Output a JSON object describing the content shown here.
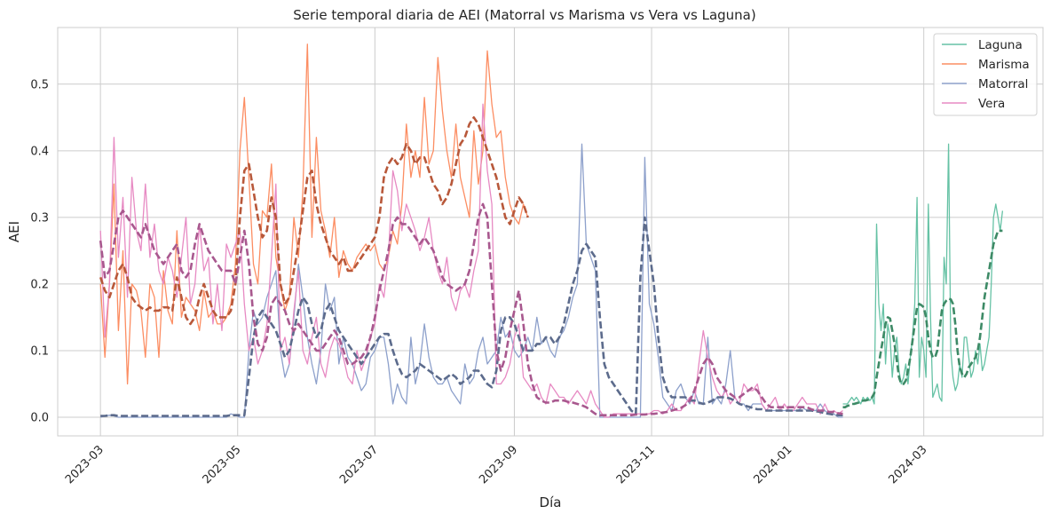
{
  "chart_data": {
    "type": "line",
    "title": "Serie temporal diaria de AEI (Matorral vs Marisma vs Vera vs Laguna)",
    "xlabel": "Día",
    "ylabel": "AEI",
    "x_range": [
      "2023-02-10",
      "2024-04-23"
    ],
    "ylim": [
      -0.028,
      0.585
    ],
    "grid": true,
    "legend_position": "top-right",
    "x_ticks": [
      "2023-03",
      "2023-05",
      "2023-07",
      "2023-09",
      "2023-11",
      "2024-01",
      "2024-03"
    ],
    "x_tick_dates": [
      "2023-03-01",
      "2023-05-01",
      "2023-07-01",
      "2023-09-01",
      "2023-11-01",
      "2024-01-01",
      "2024-03-01"
    ],
    "y_ticks": [
      "0.0",
      "0.1",
      "0.2",
      "0.3",
      "0.4",
      "0.5"
    ],
    "y_tick_values": [
      0.0,
      0.1,
      0.2,
      0.3,
      0.4,
      0.5
    ],
    "series": [
      {
        "name": "Laguna",
        "color": "#66c2a5",
        "trend_color": "#3d8a66",
        "start": "2024-01-25",
        "daily_step": 1,
        "values": [
          0.02,
          0.02,
          0.02,
          0.025,
          0.03,
          0.025,
          0.03,
          0.025,
          0.02,
          0.03,
          0.025,
          0.03,
          0.025,
          0.03,
          0.02,
          0.29,
          0.17,
          0.13,
          0.17,
          0.08,
          0.14,
          0.12,
          0.06,
          0.1,
          0.12,
          0.07,
          0.05,
          0.06,
          0.08,
          0.05,
          0.09,
          0.12,
          0.17,
          0.33,
          0.06,
          0.12,
          0.1,
          0.06,
          0.32,
          0.15,
          0.03,
          0.04,
          0.05,
          0.03,
          0.024,
          0.24,
          0.2,
          0.41,
          0.1,
          0.06,
          0.04,
          0.05,
          0.08,
          0.06,
          0.12,
          0.12,
          0.09,
          0.06,
          0.07,
          0.1,
          0.08,
          0.11,
          0.07,
          0.08,
          0.1,
          0.12,
          0.2,
          0.3,
          0.32,
          0.3,
          0.28,
          0.31
        ],
        "trend_start": "2024-01-25",
        "trend": [
          0.015,
          0.015,
          0.017,
          0.018,
          0.02,
          0.02,
          0.021,
          0.022,
          0.024,
          0.025,
          0.025,
          0.026,
          0.027,
          0.03,
          0.036,
          0.06,
          0.08,
          0.1,
          0.12,
          0.14,
          0.15,
          0.148,
          0.13,
          0.11,
          0.085,
          0.06,
          0.05,
          0.05,
          0.055,
          0.07,
          0.09,
          0.115,
          0.14,
          0.165,
          0.17,
          0.168,
          0.165,
          0.15,
          0.12,
          0.1,
          0.09,
          0.09,
          0.1,
          0.13,
          0.16,
          0.17,
          0.175,
          0.178,
          0.177,
          0.17,
          0.14,
          0.1,
          0.075,
          0.065,
          0.06,
          0.065,
          0.075,
          0.08,
          0.085,
          0.09,
          0.1,
          0.12,
          0.15,
          0.18,
          0.2,
          0.22,
          0.24,
          0.26,
          0.27,
          0.28,
          0.28,
          0.28
        ]
      },
      {
        "name": "Marisma",
        "color": "#fc8d62",
        "trend_color": "#b8583a",
        "start": "2023-03-01",
        "daily_step": 2,
        "values": [
          0.2,
          0.09,
          0.2,
          0.35,
          0.13,
          0.25,
          0.05,
          0.2,
          0.19,
          0.16,
          0.09,
          0.2,
          0.18,
          0.09,
          0.22,
          0.16,
          0.14,
          0.28,
          0.15,
          0.18,
          0.17,
          0.16,
          0.13,
          0.19,
          0.15,
          0.16,
          0.14,
          0.14,
          0.15,
          0.17,
          0.23,
          0.4,
          0.48,
          0.36,
          0.23,
          0.2,
          0.31,
          0.3,
          0.38,
          0.24,
          0.2,
          0.16,
          0.18,
          0.3,
          0.24,
          0.34,
          0.56,
          0.27,
          0.42,
          0.31,
          0.28,
          0.24,
          0.3,
          0.21,
          0.25,
          0.23,
          0.22,
          0.24,
          0.25,
          0.26,
          0.25,
          0.26,
          0.23,
          0.22,
          0.24,
          0.28,
          0.26,
          0.32,
          0.44,
          0.36,
          0.4,
          0.36,
          0.48,
          0.38,
          0.4,
          0.54,
          0.46,
          0.4,
          0.36,
          0.44,
          0.36,
          0.33,
          0.3,
          0.43,
          0.35,
          0.4,
          0.55,
          0.47,
          0.42,
          0.43,
          0.36,
          0.32,
          0.3,
          0.29,
          0.32,
          0.3
        ],
        "trend_start": "2023-03-01",
        "trend": [
          0.21,
          0.19,
          0.18,
          0.2,
          0.22,
          0.23,
          0.21,
          0.18,
          0.17,
          0.165,
          0.16,
          0.165,
          0.16,
          0.16,
          0.165,
          0.165,
          0.16,
          0.21,
          0.18,
          0.15,
          0.14,
          0.15,
          0.18,
          0.2,
          0.18,
          0.16,
          0.15,
          0.15,
          0.15,
          0.16,
          0.2,
          0.3,
          0.37,
          0.38,
          0.34,
          0.3,
          0.27,
          0.28,
          0.33,
          0.3,
          0.2,
          0.17,
          0.18,
          0.22,
          0.26,
          0.31,
          0.36,
          0.37,
          0.32,
          0.29,
          0.27,
          0.25,
          0.24,
          0.23,
          0.24,
          0.22,
          0.22,
          0.23,
          0.24,
          0.25,
          0.26,
          0.27,
          0.3,
          0.36,
          0.38,
          0.39,
          0.38,
          0.39,
          0.41,
          0.4,
          0.38,
          0.39,
          0.39,
          0.37,
          0.35,
          0.34,
          0.32,
          0.33,
          0.35,
          0.38,
          0.41,
          0.42,
          0.44,
          0.45,
          0.44,
          0.42,
          0.4,
          0.38,
          0.36,
          0.33,
          0.3,
          0.29,
          0.31,
          0.33,
          0.32,
          0.3
        ]
      },
      {
        "name": "Matorral",
        "color": "#8da0cb",
        "trend_color": "#5c6b8c",
        "start": "2023-03-01",
        "daily_step": 2,
        "values": [
          0.0,
          0.002,
          0.003,
          0.002,
          0.0,
          0.0,
          0.0,
          0.0,
          0.0,
          0.0,
          0.0,
          0.0,
          0.0,
          0.0,
          0.0,
          0.0,
          0.0,
          0.0,
          0.0,
          0.0,
          0.0,
          0.0,
          0.0,
          0.0,
          0.0,
          0.0,
          0.0,
          0.0,
          0.0,
          0.005,
          0.003,
          0.0,
          0.0,
          0.1,
          0.16,
          0.14,
          0.15,
          0.18,
          0.2,
          0.22,
          0.1,
          0.06,
          0.08,
          0.15,
          0.23,
          0.18,
          0.12,
          0.08,
          0.05,
          0.1,
          0.2,
          0.16,
          0.18,
          0.08,
          0.12,
          0.09,
          0.08,
          0.06,
          0.04,
          0.05,
          0.09,
          0.1,
          0.12,
          0.12,
          0.08,
          0.02,
          0.05,
          0.03,
          0.02,
          0.12,
          0.05,
          0.08,
          0.14,
          0.09,
          0.06,
          0.05,
          0.05,
          0.06,
          0.04,
          0.03,
          0.02,
          0.08,
          0.05,
          0.06,
          0.1,
          0.12,
          0.08,
          0.09,
          0.1,
          0.15,
          0.12,
          0.13,
          0.1,
          0.09,
          0.1,
          0.12,
          0.1,
          0.15,
          0.11,
          0.12,
          0.1,
          0.09,
          0.12,
          0.13,
          0.15,
          0.18,
          0.2,
          0.41,
          0.26,
          0.24,
          0.22,
          0.0,
          0.0,
          0.0,
          0.0,
          0.0,
          0.0,
          0.0,
          0.0,
          0.0,
          0.0,
          0.39,
          0.17,
          0.14,
          0.09,
          0.03,
          0.02,
          0.01,
          0.04,
          0.05,
          0.03,
          0.02,
          0.04,
          0.02,
          0.02,
          0.12,
          0.02,
          0.03,
          0.02,
          0.05,
          0.1,
          0.03,
          0.02,
          0.02,
          0.01,
          0.02,
          0.02,
          0.02,
          0.01,
          0.01,
          0.01,
          0.01,
          0.01,
          0.01,
          0.01,
          0.01,
          0.015,
          0.01,
          0.01,
          0.01,
          0.02,
          0.01,
          0.005,
          0.005,
          0.0,
          0.0
        ],
        "trend_start": "2023-03-01",
        "trend": [
          0.002,
          0.002,
          0.003,
          0.003,
          0.002,
          0.002,
          0.002,
          0.002,
          0.002,
          0.002,
          0.002,
          0.002,
          0.002,
          0.002,
          0.002,
          0.002,
          0.002,
          0.002,
          0.002,
          0.002,
          0.002,
          0.002,
          0.002,
          0.002,
          0.002,
          0.002,
          0.002,
          0.002,
          0.002,
          0.003,
          0.003,
          0.003,
          0.003,
          0.06,
          0.12,
          0.15,
          0.16,
          0.15,
          0.14,
          0.13,
          0.11,
          0.09,
          0.1,
          0.13,
          0.16,
          0.18,
          0.17,
          0.14,
          0.12,
          0.13,
          0.16,
          0.17,
          0.15,
          0.13,
          0.12,
          0.11,
          0.1,
          0.09,
          0.08,
          0.09,
          0.1,
          0.11,
          0.12,
          0.125,
          0.125,
          0.1,
          0.08,
          0.065,
          0.06,
          0.065,
          0.07,
          0.08,
          0.075,
          0.07,
          0.065,
          0.06,
          0.055,
          0.06,
          0.065,
          0.06,
          0.05,
          0.055,
          0.06,
          0.07,
          0.07,
          0.06,
          0.05,
          0.045,
          0.07,
          0.13,
          0.15,
          0.15,
          0.14,
          0.12,
          0.1,
          0.1,
          0.1,
          0.11,
          0.11,
          0.12,
          0.12,
          0.11,
          0.12,
          0.14,
          0.17,
          0.2,
          0.22,
          0.25,
          0.26,
          0.25,
          0.24,
          0.15,
          0.08,
          0.06,
          0.05,
          0.04,
          0.03,
          0.02,
          0.01,
          0.005,
          0.21,
          0.3,
          0.25,
          0.2,
          0.12,
          0.06,
          0.04,
          0.03,
          0.03,
          0.03,
          0.03,
          0.025,
          0.025,
          0.022,
          0.02,
          0.022,
          0.025,
          0.03,
          0.03,
          0.03,
          0.028,
          0.025,
          0.02,
          0.018,
          0.016,
          0.014,
          0.012,
          0.012,
          0.01,
          0.01,
          0.01,
          0.01,
          0.01,
          0.01,
          0.01,
          0.01,
          0.01,
          0.01,
          0.01,
          0.009,
          0.008,
          0.006,
          0.005,
          0.004,
          0.003,
          0.003
        ]
      },
      {
        "name": "Vera",
        "color": "#e78ac3",
        "trend_color": "#a8588e",
        "start": "2023-03-01",
        "daily_step": 2,
        "values": [
          0.28,
          0.12,
          0.2,
          0.42,
          0.24,
          0.33,
          0.18,
          0.36,
          0.28,
          0.25,
          0.35,
          0.24,
          0.29,
          0.22,
          0.2,
          0.24,
          0.22,
          0.18,
          0.24,
          0.3,
          0.17,
          0.2,
          0.29,
          0.22,
          0.24,
          0.14,
          0.2,
          0.13,
          0.26,
          0.24,
          0.26,
          0.28,
          0.17,
          0.1,
          0.12,
          0.08,
          0.1,
          0.14,
          0.24,
          0.35,
          0.1,
          0.12,
          0.08,
          0.16,
          0.22,
          0.1,
          0.08,
          0.12,
          0.15,
          0.08,
          0.06,
          0.1,
          0.12,
          0.11,
          0.09,
          0.06,
          0.05,
          0.1,
          0.07,
          0.09,
          0.12,
          0.14,
          0.2,
          0.18,
          0.24,
          0.37,
          0.34,
          0.28,
          0.32,
          0.3,
          0.28,
          0.25,
          0.27,
          0.3,
          0.25,
          0.22,
          0.2,
          0.24,
          0.18,
          0.16,
          0.19,
          0.2,
          0.18,
          0.22,
          0.25,
          0.47,
          0.37,
          0.32,
          0.05,
          0.05,
          0.06,
          0.08,
          0.12,
          0.14,
          0.06,
          0.05,
          0.04,
          0.05,
          0.03,
          0.02,
          0.05,
          0.04,
          0.03,
          0.03,
          0.02,
          0.03,
          0.04,
          0.03,
          0.02,
          0.04,
          0.02,
          0.01,
          0.0,
          0.0,
          0.005,
          0.005,
          0.005,
          0.005,
          0.005,
          0.005,
          0.005,
          0.005,
          0.005,
          0.01,
          0.01,
          0.005,
          0.01,
          0.02,
          0.01,
          0.01,
          0.02,
          0.03,
          0.02,
          0.08,
          0.13,
          0.09,
          0.06,
          0.04,
          0.03,
          0.04,
          0.02,
          0.03,
          0.02,
          0.05,
          0.04,
          0.04,
          0.05,
          0.02,
          0.01,
          0.02,
          0.03,
          0.01,
          0.02,
          0.01,
          0.01,
          0.02,
          0.03,
          0.02,
          0.02,
          0.02,
          0.005,
          0.02,
          0.005,
          0.01,
          0.005,
          0.01
        ],
        "trend_start": "2023-03-01",
        "trend": [
          0.265,
          0.21,
          0.22,
          0.26,
          0.3,
          0.31,
          0.3,
          0.29,
          0.28,
          0.27,
          0.29,
          0.27,
          0.25,
          0.24,
          0.23,
          0.24,
          0.25,
          0.26,
          0.22,
          0.21,
          0.22,
          0.26,
          0.29,
          0.27,
          0.25,
          0.24,
          0.23,
          0.22,
          0.22,
          0.22,
          0.2,
          0.24,
          0.28,
          0.23,
          0.15,
          0.11,
          0.1,
          0.12,
          0.17,
          0.18,
          0.17,
          0.16,
          0.14,
          0.13,
          0.14,
          0.13,
          0.12,
          0.11,
          0.1,
          0.1,
          0.11,
          0.12,
          0.13,
          0.12,
          0.1,
          0.08,
          0.08,
          0.085,
          0.09,
          0.1,
          0.12,
          0.15,
          0.19,
          0.22,
          0.25,
          0.29,
          0.3,
          0.29,
          0.29,
          0.28,
          0.27,
          0.26,
          0.27,
          0.26,
          0.25,
          0.23,
          0.21,
          0.2,
          0.195,
          0.19,
          0.195,
          0.2,
          0.22,
          0.26,
          0.3,
          0.32,
          0.3,
          0.2,
          0.1,
          0.07,
          0.09,
          0.13,
          0.16,
          0.19,
          0.14,
          0.08,
          0.05,
          0.03,
          0.025,
          0.022,
          0.022,
          0.025,
          0.025,
          0.025,
          0.023,
          0.022,
          0.02,
          0.018,
          0.015,
          0.01,
          0.005,
          0.003,
          0.003,
          0.003,
          0.003,
          0.003,
          0.003,
          0.003,
          0.003,
          0.004,
          0.004,
          0.004,
          0.005,
          0.005,
          0.006,
          0.007,
          0.008,
          0.01,
          0.012,
          0.014,
          0.018,
          0.025,
          0.04,
          0.06,
          0.08,
          0.09,
          0.08,
          0.06,
          0.05,
          0.04,
          0.035,
          0.03,
          0.03,
          0.035,
          0.04,
          0.045,
          0.04,
          0.03,
          0.02,
          0.015,
          0.015,
          0.015,
          0.015,
          0.015,
          0.015,
          0.015,
          0.015,
          0.015,
          0.012,
          0.01,
          0.01,
          0.01,
          0.008,
          0.008,
          0.006,
          0.005
        ]
      }
    ]
  }
}
